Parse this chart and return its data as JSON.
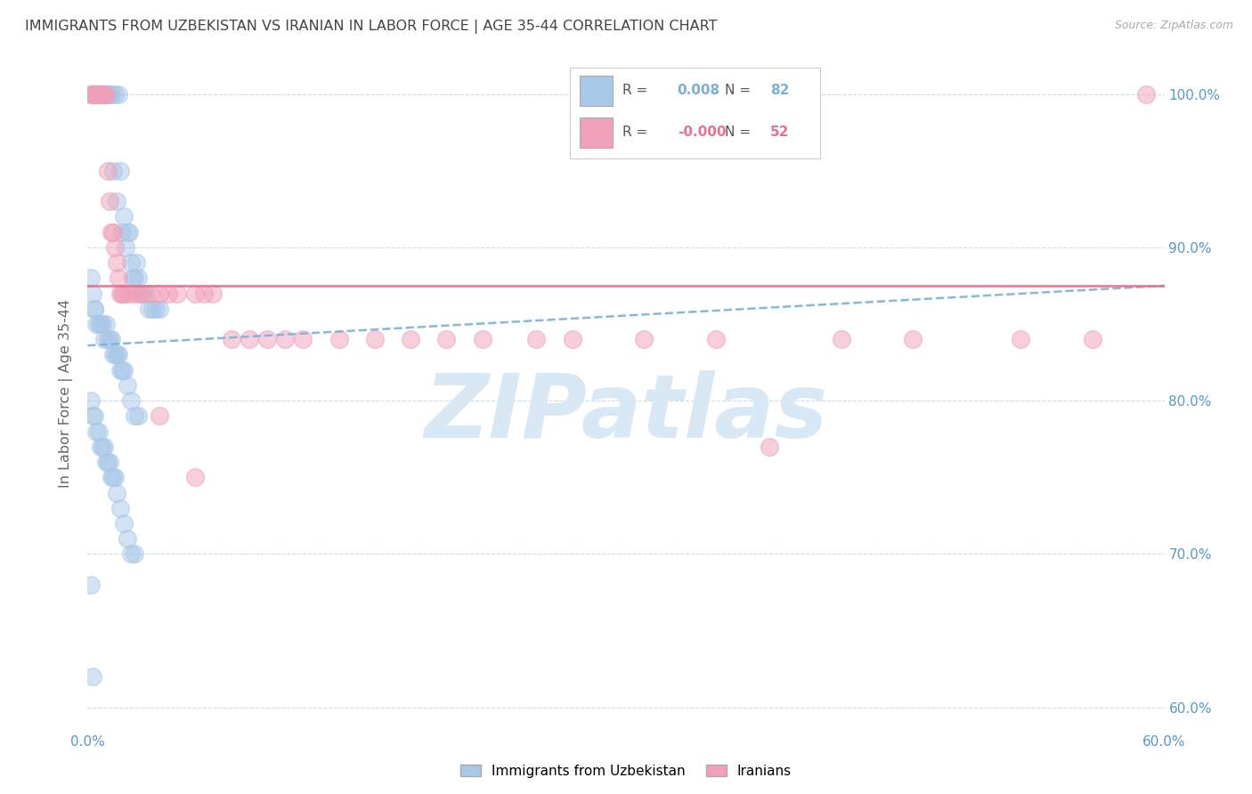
{
  "title": "IMMIGRANTS FROM UZBEKISTAN VS IRANIAN IN LABOR FORCE | AGE 35-44 CORRELATION CHART",
  "source": "Source: ZipAtlas.com",
  "ylabel": "In Labor Force | Age 35-44",
  "watermark": "ZIPatlas",
  "legend_blue_R": " 0.008",
  "legend_blue_N": "82",
  "legend_pink_R": "-0.000",
  "legend_pink_N": "52",
  "xlim": [
    0.0,
    0.6
  ],
  "ylim": [
    0.585,
    1.025
  ],
  "yticks": [
    0.6,
    0.7,
    0.8,
    0.9,
    1.0
  ],
  "ytick_labels": [
    "60.0%",
    "70.0%",
    "80.0%",
    "90.0%",
    "100.0%"
  ],
  "xticks": [
    0.0,
    0.1,
    0.2,
    0.3,
    0.4,
    0.5,
    0.6
  ],
  "xtick_labels": [
    "0.0%",
    "",
    "",
    "",
    "",
    "",
    "60.0%"
  ],
  "blue_color": "#a8c8e8",
  "pink_color": "#f0a0b8",
  "trend_blue_color": "#7ab0d8",
  "trend_pink_color": "#e87090",
  "axis_color": "#5599cc",
  "grid_color": "#c8dcea",
  "title_color": "#444444",
  "source_color": "#aaaaaa",
  "watermark_color": "#d8e8f4",
  "blue_scatter_x": [
    0.002,
    0.003,
    0.004,
    0.005,
    0.005,
    0.006,
    0.007,
    0.007,
    0.008,
    0.009,
    0.01,
    0.01,
    0.011,
    0.012,
    0.013,
    0.014,
    0.015,
    0.016,
    0.017,
    0.018,
    0.019,
    0.02,
    0.021,
    0.022,
    0.023,
    0.024,
    0.025,
    0.026,
    0.027,
    0.028,
    0.03,
    0.032,
    0.034,
    0.036,
    0.038,
    0.04,
    0.002,
    0.003,
    0.004,
    0.004,
    0.005,
    0.006,
    0.007,
    0.008,
    0.009,
    0.01,
    0.011,
    0.012,
    0.013,
    0.014,
    0.015,
    0.016,
    0.017,
    0.018,
    0.019,
    0.02,
    0.022,
    0.024,
    0.026,
    0.028,
    0.002,
    0.003,
    0.004,
    0.005,
    0.006,
    0.007,
    0.008,
    0.009,
    0.01,
    0.011,
    0.012,
    0.013,
    0.014,
    0.015,
    0.016,
    0.018,
    0.02,
    0.022,
    0.024,
    0.026,
    0.002,
    0.003
  ],
  "blue_scatter_y": [
    1.0,
    1.0,
    1.0,
    1.0,
    1.0,
    1.0,
    1.0,
    1.0,
    1.0,
    1.0,
    1.0,
    1.0,
    1.0,
    1.0,
    1.0,
    0.95,
    1.0,
    0.93,
    1.0,
    0.95,
    0.91,
    0.92,
    0.9,
    0.91,
    0.91,
    0.89,
    0.88,
    0.88,
    0.89,
    0.88,
    0.87,
    0.87,
    0.86,
    0.86,
    0.86,
    0.86,
    0.88,
    0.87,
    0.86,
    0.86,
    0.85,
    0.85,
    0.85,
    0.85,
    0.84,
    0.85,
    0.84,
    0.84,
    0.84,
    0.83,
    0.83,
    0.83,
    0.83,
    0.82,
    0.82,
    0.82,
    0.81,
    0.8,
    0.79,
    0.79,
    0.8,
    0.79,
    0.79,
    0.78,
    0.78,
    0.77,
    0.77,
    0.77,
    0.76,
    0.76,
    0.76,
    0.75,
    0.75,
    0.75,
    0.74,
    0.73,
    0.72,
    0.71,
    0.7,
    0.7,
    0.68,
    0.62
  ],
  "pink_scatter_x": [
    0.002,
    0.003,
    0.004,
    0.005,
    0.006,
    0.007,
    0.008,
    0.009,
    0.01,
    0.011,
    0.012,
    0.013,
    0.014,
    0.015,
    0.016,
    0.017,
    0.018,
    0.019,
    0.02,
    0.022,
    0.025,
    0.028,
    0.03,
    0.035,
    0.04,
    0.045,
    0.05,
    0.06,
    0.065,
    0.07,
    0.08,
    0.09,
    0.1,
    0.11,
    0.12,
    0.14,
    0.16,
    0.18,
    0.2,
    0.22,
    0.25,
    0.27,
    0.31,
    0.35,
    0.38,
    0.42,
    0.46,
    0.52,
    0.56,
    0.59,
    0.04,
    0.06
  ],
  "pink_scatter_y": [
    1.0,
    1.0,
    1.0,
    1.0,
    1.0,
    1.0,
    1.0,
    1.0,
    1.0,
    0.95,
    0.93,
    0.91,
    0.91,
    0.9,
    0.89,
    0.88,
    0.87,
    0.87,
    0.87,
    0.87,
    0.87,
    0.87,
    0.87,
    0.87,
    0.87,
    0.87,
    0.87,
    0.87,
    0.87,
    0.87,
    0.84,
    0.84,
    0.84,
    0.84,
    0.84,
    0.84,
    0.84,
    0.84,
    0.84,
    0.84,
    0.84,
    0.84,
    0.84,
    0.84,
    0.77,
    0.84,
    0.84,
    0.84,
    0.84,
    1.0,
    0.79,
    0.75
  ],
  "blue_trend_x": [
    0.0,
    0.6
  ],
  "blue_trend_y": [
    0.836,
    0.875
  ],
  "pink_trend_x": [
    0.0,
    0.6
  ],
  "pink_trend_y": [
    0.875,
    0.875
  ],
  "scatter_size": 200,
  "scatter_alpha": 0.5,
  "scatter_lw": 1.2
}
